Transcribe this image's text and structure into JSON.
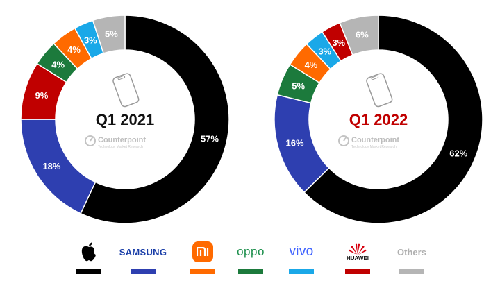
{
  "chart_data": [
    {
      "type": "pie",
      "variant": "donut",
      "title": "Q1 2021",
      "title_color": "#111111",
      "categories": [
        "Apple",
        "Samsung",
        "Xiaomi",
        "Oppo",
        "Vivo",
        "Huawei",
        "Others"
      ],
      "slices": [
        {
          "brand": "Apple",
          "value": 57,
          "label": "57%"
        },
        {
          "brand": "Samsung",
          "value": 18,
          "label": "18%"
        },
        {
          "brand": "Huawei",
          "value": 9,
          "label": "9%"
        },
        {
          "brand": "Oppo",
          "value": 4,
          "label": "4%"
        },
        {
          "brand": "Xiaomi",
          "value": 4,
          "label": "4%"
        },
        {
          "brand": "Vivo",
          "value": 3,
          "label": "3%"
        },
        {
          "brand": "Others",
          "value": 5,
          "label": "5%"
        }
      ]
    },
    {
      "type": "pie",
      "variant": "donut",
      "title": "Q1 2022",
      "title_color": "#c00000",
      "categories": [
        "Apple",
        "Samsung",
        "Xiaomi",
        "Oppo",
        "Vivo",
        "Huawei",
        "Others"
      ],
      "slices": [
        {
          "brand": "Apple",
          "value": 62,
          "label": "62%"
        },
        {
          "brand": "Samsung",
          "value": 16,
          "label": "16%"
        },
        {
          "brand": "Oppo",
          "value": 5,
          "label": "5%"
        },
        {
          "brand": "Xiaomi",
          "value": 4,
          "label": "4%"
        },
        {
          "brand": "Vivo",
          "value": 3,
          "label": "3%"
        },
        {
          "brand": "Huawei",
          "value": 3,
          "label": "3%"
        },
        {
          "brand": "Others",
          "value": 6,
          "label": "6%"
        }
      ]
    }
  ],
  "colors": {
    "Apple": "#000000",
    "Samsung": "#2e3fb0",
    "Xiaomi": "#ff6a00",
    "Oppo": "#1c7a3c",
    "Vivo": "#1aa8e8",
    "Huawei": "#c00000",
    "Others": "#b5b5b5"
  },
  "watermark": {
    "name": "Counterpoint",
    "tagline": "Technology Market Research"
  },
  "legend": {
    "samsung": "SAMSUNG",
    "oppo": "oppo",
    "vivo": "vivo",
    "huawei": "HUAWEI",
    "xiaomi": "mi",
    "others": "Others"
  }
}
